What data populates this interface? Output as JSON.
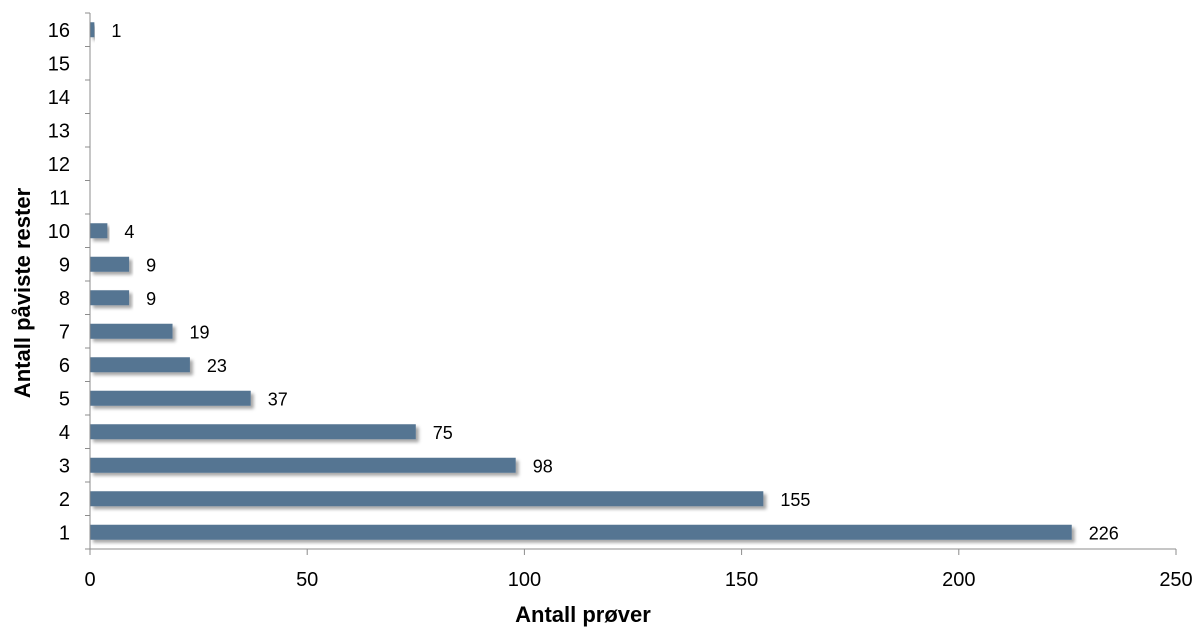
{
  "chart_data": {
    "type": "bar",
    "orientation": "horizontal",
    "categories": [
      "1",
      "2",
      "3",
      "4",
      "5",
      "6",
      "7",
      "8",
      "9",
      "10",
      "11",
      "12",
      "13",
      "14",
      "15",
      "16"
    ],
    "values": [
      226,
      155,
      98,
      75,
      37,
      23,
      19,
      9,
      9,
      4,
      null,
      null,
      null,
      null,
      null,
      1
    ],
    "data_labels": [
      "226",
      "155",
      "98",
      "75",
      "37",
      "23",
      "19",
      "9",
      "9",
      "4",
      "",
      "",
      "",
      "",
      "",
      "1"
    ],
    "xlabel": "Antall prøver",
    "ylabel": "Antall påviste rester",
    "xlim": [
      0,
      250
    ],
    "xticks": [
      "0",
      "50",
      "100",
      "150",
      "200",
      "250"
    ],
    "grid": false,
    "legend": "none",
    "bar_color": "#557592"
  }
}
